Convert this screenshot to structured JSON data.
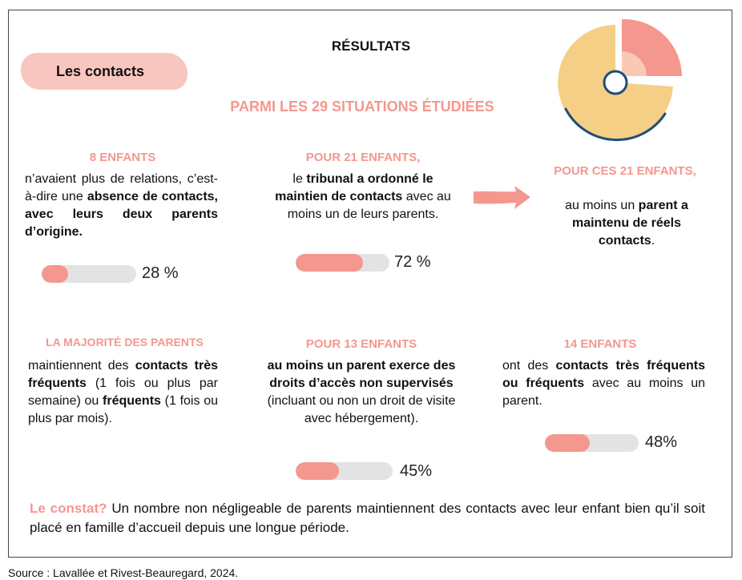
{
  "header": {
    "title": "RÉSULTATS",
    "tag": "Les contacts",
    "subtitle": "PARMI LES 29 SITUATIONS ÉTUDIÉES"
  },
  "colors": {
    "accent": "#f4978e",
    "tag_bg": "#f9c6bf",
    "bar_track": "#e3e3e3",
    "pie_yellow": "#f5cf86",
    "pie_salmon": "#f4978e",
    "pie_peach": "#f9c9b5",
    "outline": "#1f4e79"
  },
  "icons": {
    "decoration": "pie-chart-icon",
    "arrow": "arrow-right-icon"
  },
  "blocks": {
    "b1": {
      "head": "8 ENFANTS",
      "text": [
        {
          "t": "n’avaient plus de relations, c’est-à-dire une ",
          "b": false
        },
        {
          "t": "absence de contacts, avec leurs deux parents d’origine.",
          "b": true
        }
      ],
      "bar": {
        "value": 0.28,
        "label": "28 %"
      }
    },
    "b2": {
      "head": "POUR 21 ENFANTS,",
      "text": [
        {
          "t": "le ",
          "b": false
        },
        {
          "t": "tribunal a ordonné le maintien de contacts",
          "b": true
        },
        {
          "t": " avec au moins un de leurs parents.",
          "b": false
        }
      ],
      "bar": {
        "value": 0.72,
        "label": "72 %"
      }
    },
    "b3": {
      "head": "POUR CES 21 ENFANTS,",
      "text": [
        {
          "t": "au moins un ",
          "b": false
        },
        {
          "t": "parent a maintenu de réels contacts",
          "b": true
        },
        {
          "t": ".",
          "b": false
        }
      ]
    },
    "b4": {
      "head": "LA MAJORITÉ DES PARENTS",
      "text": [
        {
          "t": "maintiennent des ",
          "b": false
        },
        {
          "t": "contacts très fréquents",
          "b": true
        },
        {
          "t": " (1 fois ou plus par semaine) ou ",
          "b": false
        },
        {
          "t": "fréquents",
          "b": true
        },
        {
          "t": " (1 fois ou plus par mois).",
          "b": false
        }
      ]
    },
    "b5": {
      "head": "POUR 13 ENFANTS",
      "text": [
        {
          "t": "au moins un parent exerce des droits d’accès non supervisés",
          "b": true
        },
        {
          "t": " (incluant ou non un droit de visite avec hébergement).",
          "b": false
        }
      ],
      "bar": {
        "value": 0.45,
        "label": "45%"
      }
    },
    "b6": {
      "head": "14 ENFANTS",
      "text": [
        {
          "t": "ont des ",
          "b": false
        },
        {
          "t": "contacts très fréquents ou fréquents",
          "b": true
        },
        {
          "t": " avec au moins un parent.",
          "b": false
        }
      ],
      "bar": {
        "value": 0.48,
        "label": "48%"
      }
    }
  },
  "constat": {
    "lead": "Le constat?",
    "text": " Un nombre non négligeable de parents maintiennent des contacts avec leur enfant bien qu’il soit placé en famille d’accueil depuis une longue période."
  },
  "source": "Source : Lavallée et Rivest-Beauregard, 2024."
}
